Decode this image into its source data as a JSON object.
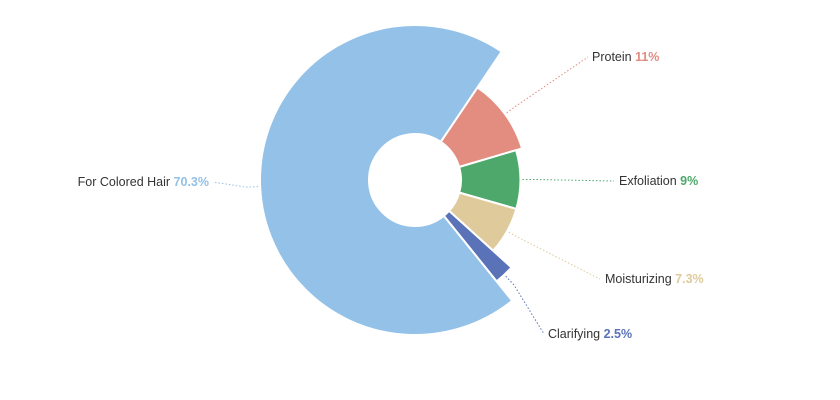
{
  "chart_data": {
    "type": "pie",
    "subtype": "variable-radius donut",
    "slices": [
      {
        "name": "Protein",
        "label": "Protein",
        "value_label": "11%",
        "value": 11,
        "color": "#E38C80",
        "relative_radius": 0.72
      },
      {
        "name": "Exfoliation",
        "label": "Exfoliation",
        "value_label": "9%",
        "value": 9,
        "color": "#4FA86B",
        "relative_radius": 0.68
      },
      {
        "name": "Moisturizing",
        "label": "Moisturizing",
        "value_label": "7.3%",
        "value": 7.3,
        "color": "#DFCA9C",
        "relative_radius": 0.68
      },
      {
        "name": "Clarifying",
        "label": "Clarifying",
        "value_label": "2.5%",
        "value": 2.5,
        "color": "#5A72B8",
        "relative_radius": 0.84
      },
      {
        "name": "For Colored Hair",
        "label": "For Colored Hair",
        "value_label": "70.3%",
        "value": 70.3,
        "color": "#93C1E8",
        "relative_radius": 1.0
      }
    ],
    "start_angle_deg": 34,
    "direction": "clockwise",
    "label_color": "#333333",
    "legend": "none (labels placed outside slices)"
  }
}
